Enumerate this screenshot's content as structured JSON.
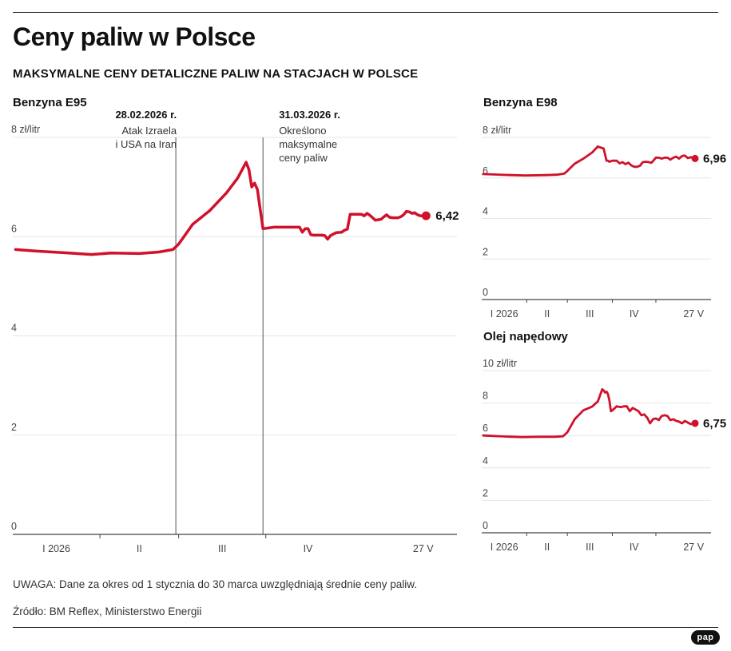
{
  "header": {
    "title": "Ceny paliw w Polsce",
    "subtitle": "MAKSYMALNE CENY DETALICZNE PALIW NA STACJACH W POLSCE"
  },
  "footer": {
    "note": "UWAGA: Dane za okres od 1 stycznia do 30 marca uwzględniają średnie ceny paliw.",
    "source": "Źródło: BM Reflex, Ministerstwo Energii",
    "logo": "pap"
  },
  "colors": {
    "line": "#d0112b",
    "grid": "#e6e6e6",
    "axis": "#444444",
    "event_line": "#555555"
  },
  "chart_data": [
    {
      "id": "e95",
      "type": "line",
      "title": "Benzyna E95",
      "unit": "zł/litr",
      "ylim": [
        0,
        8
      ],
      "yticks": [
        0,
        2,
        4,
        6,
        8
      ],
      "xlim": [
        0,
        158
      ],
      "x_month_boundaries": [
        31,
        59,
        90
      ],
      "x_tick_labels": [
        {
          "label": "I 2026",
          "x": 15.5
        },
        {
          "label": "II",
          "x": 45
        },
        {
          "label": "III",
          "x": 74.5
        },
        {
          "label": "IV",
          "x": 105
        },
        {
          "label": "27 V",
          "x": 146
        }
      ],
      "grid": true,
      "annotations": [
        {
          "x": 58,
          "date": "28.02.2026 r.",
          "lines": [
            "Atak Izraela",
            "i USA na Iran"
          ],
          "align": "end"
        },
        {
          "x": 89,
          "date": "31.03.2026 r.",
          "lines": [
            "Określono",
            "maksymalne",
            "ceny paliw"
          ],
          "align": "start"
        }
      ],
      "last_value_label": "6,42",
      "series": [
        {
          "x": [
            1,
            8,
            20,
            28,
            35,
            45,
            52,
            57,
            59,
            64,
            70,
            76,
            80,
            83,
            84,
            85,
            86,
            87,
            88,
            89,
            93,
            97,
            98,
            99,
            100,
            101,
            102,
            103,
            104,
            105,
            106,
            107,
            108,
            110,
            111,
            112,
            113,
            114,
            115,
            117,
            118,
            119,
            120,
            121,
            122,
            123,
            124,
            125,
            126,
            127,
            128,
            129,
            131,
            132,
            133,
            134,
            135,
            136,
            137,
            138,
            139,
            140,
            141,
            142,
            143,
            144,
            145,
            147
          ],
          "y": [
            5.74,
            5.71,
            5.67,
            5.64,
            5.67,
            5.66,
            5.69,
            5.74,
            5.85,
            6.25,
            6.52,
            6.88,
            7.18,
            7.5,
            7.35,
            7.0,
            7.08,
            6.95,
            6.55,
            6.16,
            6.19,
            6.19,
            6.19,
            6.19,
            6.19,
            6.19,
            6.19,
            6.09,
            6.16,
            6.16,
            6.04,
            6.03,
            6.03,
            6.03,
            6.02,
            5.95,
            6.02,
            6.05,
            6.08,
            6.09,
            6.13,
            6.15,
            6.45,
            6.45,
            6.45,
            6.45,
            6.45,
            6.42,
            6.47,
            6.43,
            6.38,
            6.33,
            6.35,
            6.4,
            6.44,
            6.39,
            6.38,
            6.38,
            6.38,
            6.4,
            6.44,
            6.51,
            6.5,
            6.47,
            6.48,
            6.44,
            6.42,
            6.42
          ]
        }
      ]
    },
    {
      "id": "e98",
      "type": "line",
      "title": "Benzyna E98",
      "unit": "zł/litr",
      "ylim": [
        0,
        8
      ],
      "yticks": [
        0,
        2,
        4,
        6,
        8
      ],
      "xlim": [
        0,
        158
      ],
      "x_month_boundaries": [
        31,
        59,
        90,
        120
      ],
      "x_tick_labels": [
        {
          "label": "I 2026",
          "x": 15.5
        },
        {
          "label": "II",
          "x": 45
        },
        {
          "label": "III",
          "x": 74.5
        },
        {
          "label": "IV",
          "x": 105
        },
        {
          "label": "27 V",
          "x": 146
        }
      ],
      "grid": true,
      "last_value_label": "6,96",
      "series": [
        {
          "x": [
            1,
            15,
            30,
            45,
            52,
            57,
            59,
            64,
            70,
            76,
            80,
            84,
            86,
            87,
            88,
            90,
            93,
            95,
            97,
            99,
            101,
            103,
            105,
            107,
            109,
            111,
            113,
            115,
            117,
            120,
            122,
            124,
            126,
            128,
            130,
            132,
            134,
            136,
            138,
            140,
            142,
            144,
            147
          ],
          "y": [
            6.19,
            6.15,
            6.12,
            6.14,
            6.16,
            6.22,
            6.35,
            6.7,
            6.95,
            7.25,
            7.55,
            7.45,
            6.85,
            6.85,
            6.8,
            6.85,
            6.85,
            6.72,
            6.78,
            6.68,
            6.75,
            6.62,
            6.55,
            6.55,
            6.6,
            6.78,
            6.8,
            6.78,
            6.75,
            7.0,
            7.0,
            6.95,
            7.0,
            7.0,
            6.9,
            7.0,
            7.05,
            6.95,
            7.08,
            7.1,
            6.98,
            7.02,
            6.96
          ]
        }
      ]
    },
    {
      "id": "on",
      "type": "line",
      "title": "Olej napędowy",
      "unit": "zł/litr",
      "ylim": [
        0,
        10
      ],
      "yticks": [
        0,
        2,
        4,
        6,
        8,
        10
      ],
      "xlim": [
        0,
        158
      ],
      "x_month_boundaries": [
        31,
        59,
        90,
        120
      ],
      "x_tick_labels": [
        {
          "label": "I 2026",
          "x": 15.5
        },
        {
          "label": "II",
          "x": 45
        },
        {
          "label": "III",
          "x": 74.5
        },
        {
          "label": "IV",
          "x": 105
        },
        {
          "label": "27 V",
          "x": 146
        }
      ],
      "grid": true,
      "last_value_label": "6,75",
      "series": [
        {
          "x": [
            1,
            15,
            28,
            40,
            50,
            56,
            59,
            64,
            70,
            76,
            80,
            83,
            84,
            85,
            86,
            87,
            88,
            89,
            90,
            93,
            96,
            98,
            100,
            102,
            104,
            106,
            108,
            110,
            112,
            114,
            116,
            118,
            120,
            122,
            124,
            126,
            128,
            130,
            132,
            134,
            136,
            138,
            140,
            142,
            144,
            147
          ],
          "y": [
            6.0,
            5.94,
            5.9,
            5.92,
            5.92,
            5.95,
            6.2,
            7.0,
            7.55,
            7.78,
            8.1,
            8.85,
            8.78,
            8.65,
            8.7,
            8.55,
            8.15,
            7.5,
            7.55,
            7.8,
            7.75,
            7.8,
            7.8,
            7.5,
            7.7,
            7.6,
            7.5,
            7.25,
            7.3,
            7.1,
            6.75,
            7.0,
            7.05,
            6.95,
            7.2,
            7.25,
            7.2,
            6.95,
            7.0,
            6.9,
            6.85,
            6.75,
            6.9,
            6.8,
            6.7,
            6.75
          ]
        }
      ]
    }
  ]
}
